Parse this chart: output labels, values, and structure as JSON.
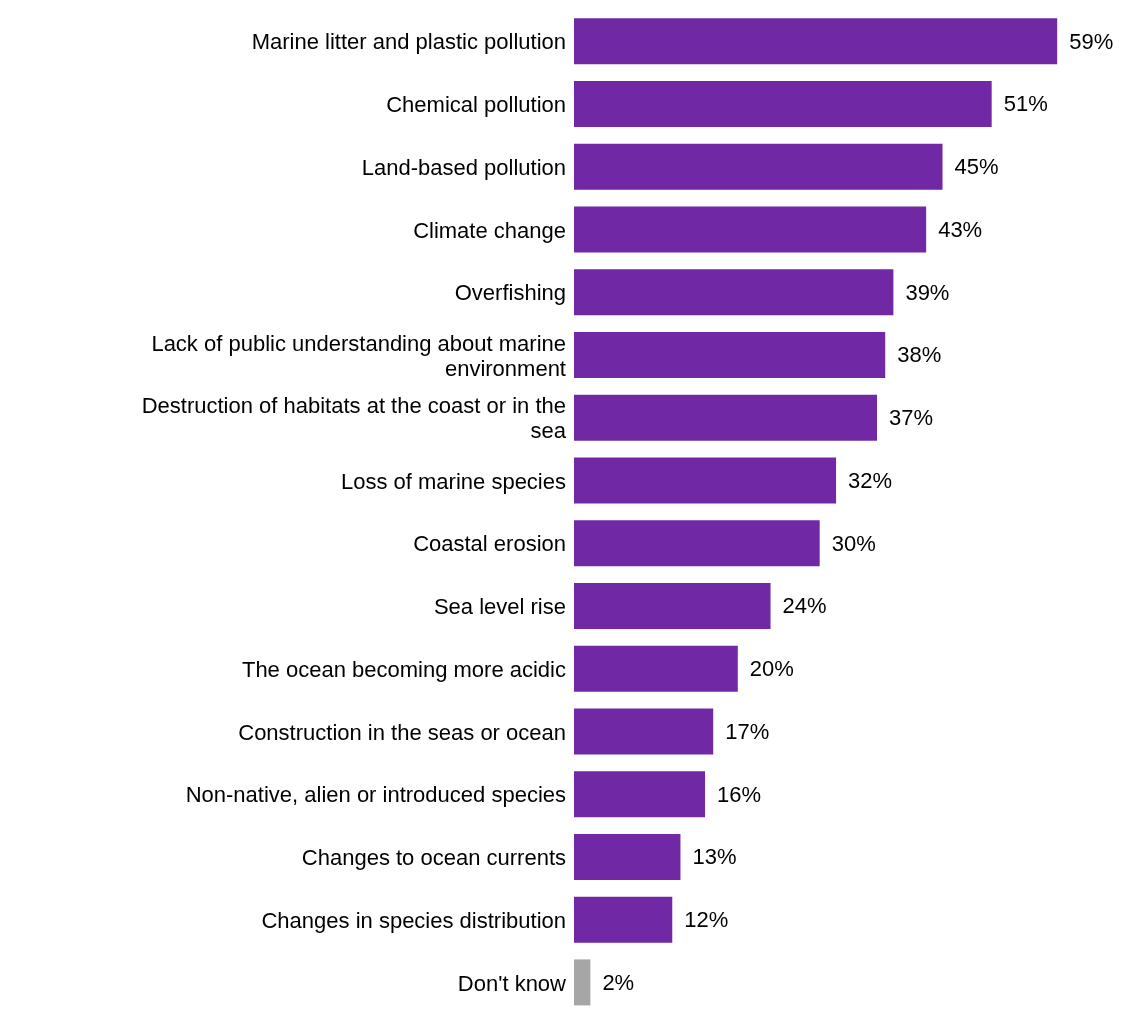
{
  "chart_data": {
    "type": "bar",
    "orientation": "horizontal",
    "tick_labels": "y",
    "categories": [
      "Marine litter and plastic pollution",
      "Chemical pollution",
      "Land-based pollution",
      "Climate change",
      "Overfishing",
      "Lack of public understanding about marine environment",
      "Destruction of habitats at the coast or in the sea",
      "Loss of marine species",
      "Coastal erosion",
      "Sea level rise",
      "The ocean becoming more acidic",
      "Construction in the seas or ocean",
      "Non-native, alien or introduced species",
      "Changes to ocean currents",
      "Changes in species distribution",
      "Don't know"
    ],
    "values": [
      59,
      51,
      45,
      43,
      39,
      38,
      37,
      32,
      30,
      24,
      20,
      17,
      16,
      13,
      12,
      2
    ],
    "value_labels": [
      "59%",
      "51%",
      "45%",
      "43%",
      "39%",
      "38%",
      "37%",
      "32%",
      "30%",
      "24%",
      "20%",
      "17%",
      "16%",
      "13%",
      "12%",
      "2%"
    ],
    "colors": [
      "#7028a4",
      "#7028a4",
      "#7028a4",
      "#7028a4",
      "#7028a4",
      "#7028a4",
      "#7028a4",
      "#7028a4",
      "#7028a4",
      "#7028a4",
      "#7028a4",
      "#7028a4",
      "#7028a4",
      "#7028a4",
      "#7028a4",
      "#a6a6a6"
    ]
  }
}
